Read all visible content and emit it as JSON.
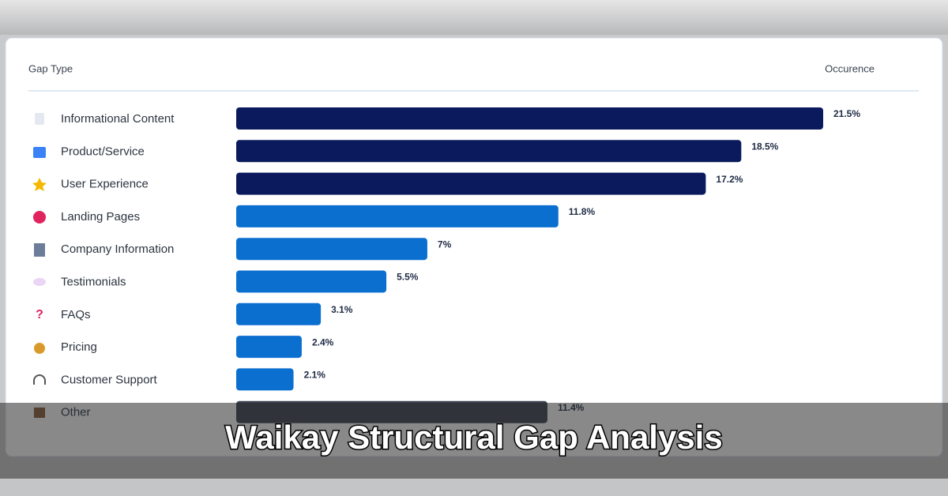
{
  "chart_data": {
    "type": "bar",
    "orientation": "horizontal",
    "title": "Waikay Structural Gap Analysis",
    "category_header": "Gap Type",
    "value_header": "Occurence",
    "categories": [
      "Informational Content",
      "Product/Service",
      "User Experience",
      "Landing Pages",
      "Company Information",
      "Testimonials",
      "FAQs",
      "Pricing",
      "Customer Support",
      "Other"
    ],
    "values": [
      21.5,
      18.5,
      17.2,
      11.8,
      7,
      5.5,
      3.1,
      2.4,
      2.1,
      11.4
    ],
    "value_labels": [
      "21.5%",
      "18.5%",
      "17.2%",
      "11.8%",
      "7%",
      "5.5%",
      "3.1%",
      "2.4%",
      "2.1%",
      "11.4%"
    ],
    "colors": [
      "#0a1a5c",
      "#0a1a5c",
      "#0a1a5c",
      "#0b6fd0",
      "#0b6fd0",
      "#0b6fd0",
      "#0b6fd0",
      "#0b6fd0",
      "#0b6fd0",
      "#3a4250"
    ]
  }
}
